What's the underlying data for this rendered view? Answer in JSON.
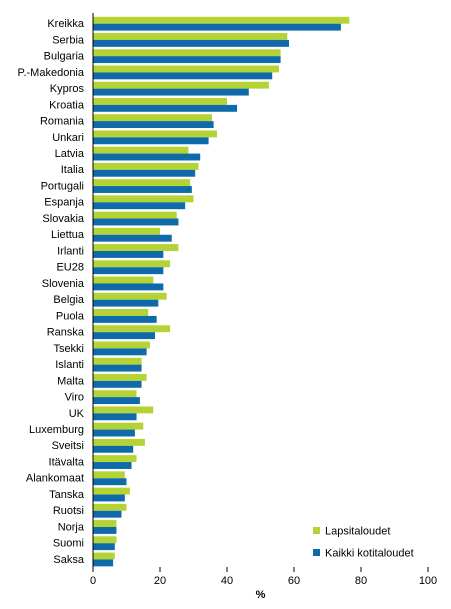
{
  "chart_data": {
    "type": "bar",
    "orientation": "horizontal",
    "categories": [
      "Kreikka",
      "Serbia",
      "Bulgaria",
      "P.-Makedonia",
      "Kypros",
      "Kroatia",
      "Romania",
      "Unkari",
      "Latvia",
      "Italia",
      "Portugali",
      "Espanja",
      "Slovakia",
      "Liettua",
      "Irlanti",
      "EU28",
      "Slovenia",
      "Belgia",
      "Puola",
      "Ranska",
      "Tsekki",
      "Islanti",
      "Malta",
      "Viro",
      "UK",
      "Luxemburg",
      "Sveitsi",
      "Itävalta",
      "Alankomaat",
      "Tanska",
      "Ruotsi",
      "Norja",
      "Suomi",
      "Saksa"
    ],
    "series": [
      {
        "name": "Lapsitaloudet",
        "color": "#b4d335",
        "values": [
          76.5,
          58,
          56,
          55.5,
          52.5,
          40,
          35.5,
          37,
          28.5,
          31.5,
          29,
          30,
          25,
          20,
          25.5,
          23,
          18,
          22,
          16.5,
          23,
          17,
          14.5,
          16,
          13,
          18,
          15,
          15.5,
          13,
          9.5,
          11,
          10,
          7,
          7,
          6.5
        ]
      },
      {
        "name": "Kaikki kotitaloudet",
        "color": "#0e6aa8",
        "values": [
          74,
          58.5,
          56,
          53.5,
          46.5,
          43,
          36,
          34.5,
          32,
          30.5,
          29.5,
          27.5,
          25.5,
          23.5,
          21,
          21,
          21,
          19.5,
          19,
          18.5,
          16,
          14.5,
          14.5,
          14,
          13,
          12.5,
          12,
          11.5,
          10,
          9.5,
          8.5,
          7,
          6.5,
          6
        ]
      }
    ],
    "x_ticks": [
      "0",
      "20",
      "40",
      "60",
      "80",
      "100"
    ],
    "xlim": [
      0,
      100
    ],
    "xlabel": "%",
    "legend_position": "bottom-right",
    "grid": false
  }
}
